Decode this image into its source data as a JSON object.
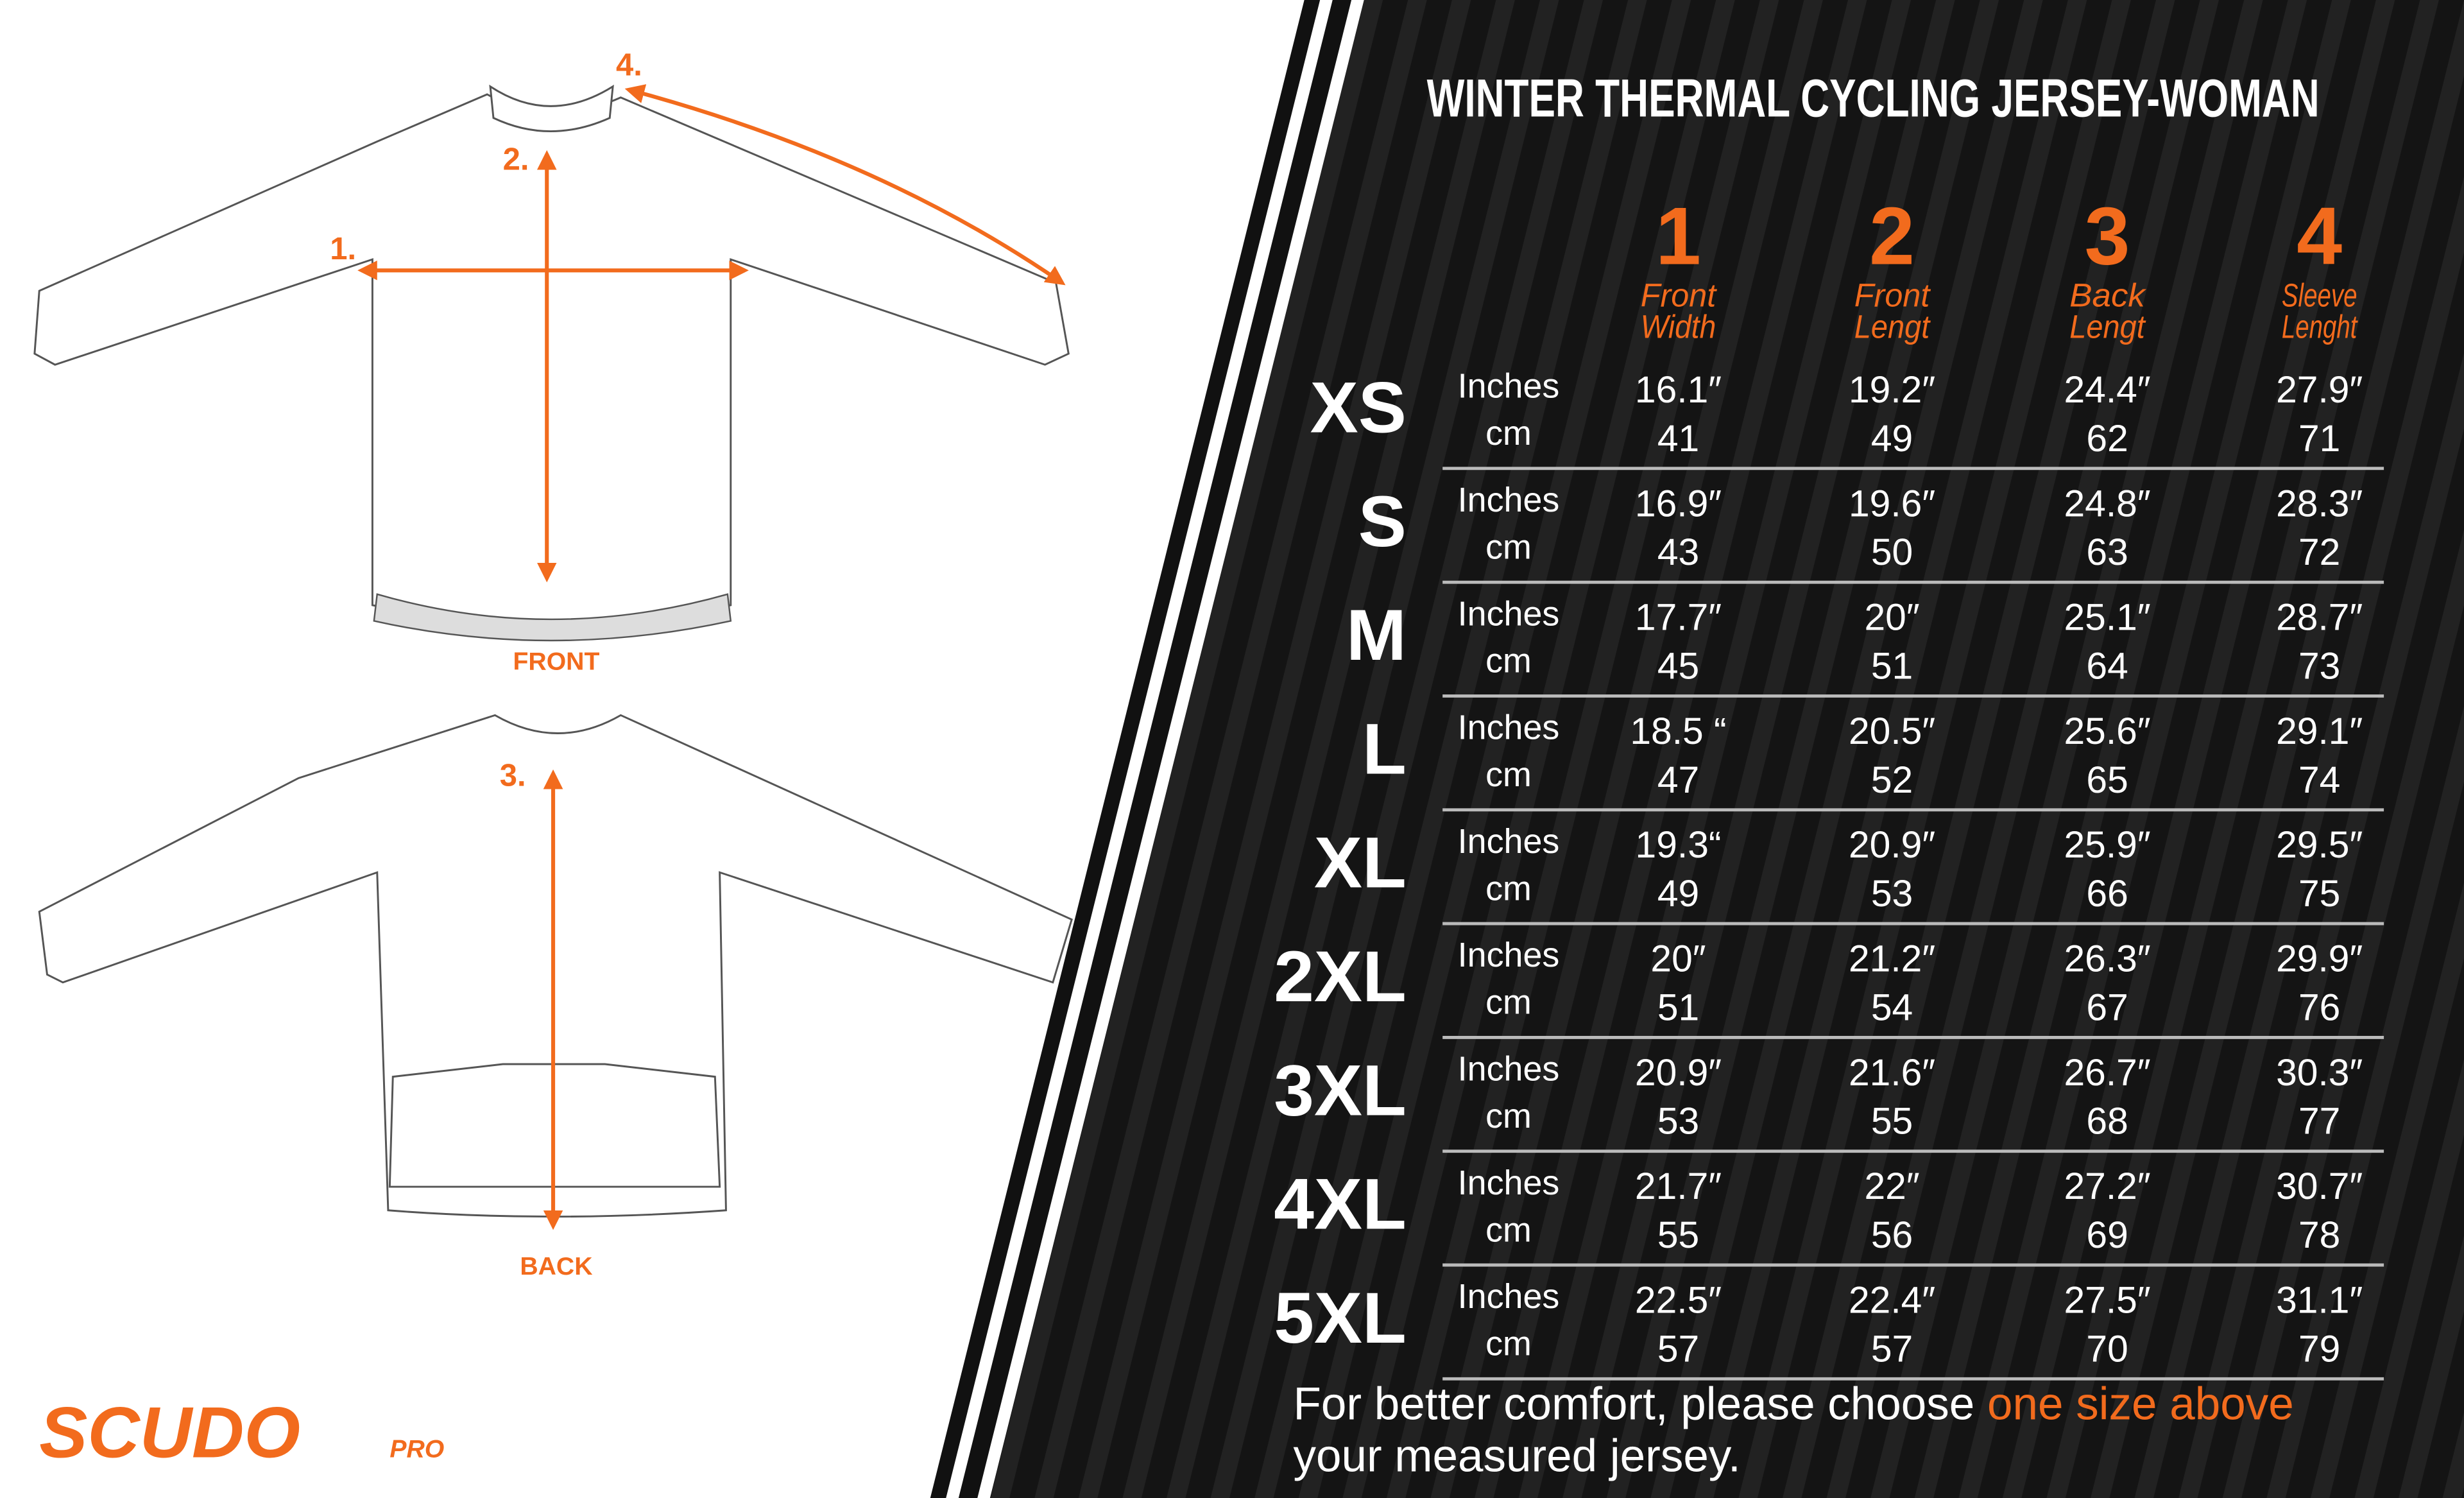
{
  "header": {
    "title": "WINTER  THERMAL CYCLING JERSEY-WOMAN"
  },
  "diagram": {
    "markers": [
      "1.",
      "2.",
      "3.",
      "4."
    ],
    "front_label": "FRONT",
    "back_label": "BACK"
  },
  "brand": {
    "name": "SCUDO",
    "suffix": "PRO"
  },
  "table": {
    "columns": [
      {
        "number": "1",
        "label": [
          "Front",
          "Width"
        ]
      },
      {
        "number": "2",
        "label": [
          "Front",
          "Lengt"
        ]
      },
      {
        "number": "3",
        "label": [
          "Back",
          "Lengt"
        ]
      },
      {
        "number": "4",
        "label": [
          "Sleeve",
          "Lenght"
        ]
      }
    ],
    "units": [
      "Inches",
      "cm"
    ],
    "rows": [
      {
        "size": "XS",
        "inches": [
          "16.1″",
          "19.2″",
          "24.4″",
          "27.9″"
        ],
        "cm": [
          "41",
          "49",
          "62",
          "71"
        ]
      },
      {
        "size": "S",
        "inches": [
          "16.9″",
          "19.6″",
          "24.8″",
          "28.3″"
        ],
        "cm": [
          "43",
          "50",
          "63",
          "72"
        ]
      },
      {
        "size": "M",
        "inches": [
          "17.7″",
          "20″",
          "25.1″",
          "28.7″"
        ],
        "cm": [
          "45",
          "51",
          "64",
          "73"
        ]
      },
      {
        "size": "L",
        "inches": [
          "18.5 “",
          "20.5″",
          "25.6″",
          "29.1″"
        ],
        "cm": [
          "47",
          "52",
          "65",
          "74"
        ]
      },
      {
        "size": "XL",
        "inches": [
          "19.3“",
          "20.9″",
          "25.9″",
          "29.5″"
        ],
        "cm": [
          "49",
          "53",
          "66",
          "75"
        ]
      },
      {
        "size": "2XL",
        "inches": [
          "20″",
          "21.2″",
          "26.3″",
          "29.9″"
        ],
        "cm": [
          "51",
          "54",
          "67",
          "76"
        ]
      },
      {
        "size": "3XL",
        "inches": [
          "20.9″",
          "21.6″",
          "26.7″",
          "30.3″"
        ],
        "cm": [
          "53",
          "55",
          "68",
          "77"
        ]
      },
      {
        "size": "4XL",
        "inches": [
          "21.7″",
          "22″",
          "27.2″",
          "30.7″"
        ],
        "cm": [
          "55",
          "56",
          "69",
          "78"
        ]
      },
      {
        "size": "5XL",
        "inches": [
          "22.5″",
          "22.4″",
          "27.5″",
          "31.1″"
        ],
        "cm": [
          "57",
          "57",
          "70",
          "79"
        ]
      }
    ]
  },
  "footer": {
    "text_start": "For better comfort, please choose ",
    "highlight": "one size above",
    "text_end": "your measured jersey."
  }
}
